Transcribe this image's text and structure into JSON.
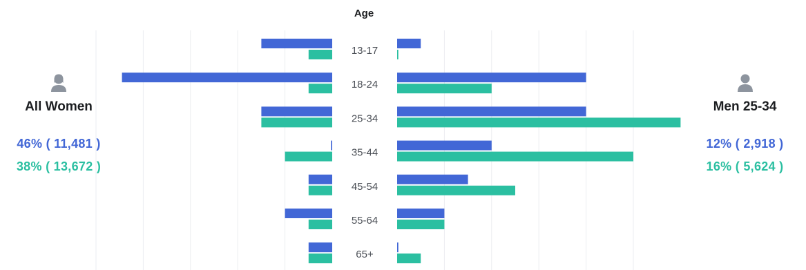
{
  "chart_data": {
    "type": "bar",
    "title": "Age",
    "categories": [
      "13-17",
      "18-24",
      "25-34",
      "35-44",
      "45-54",
      "55-64",
      "65+"
    ],
    "left_group": {
      "name": "All Women",
      "series": [
        {
          "values": [
            30,
            89,
            30,
            0.5,
            10,
            20,
            10
          ]
        },
        {
          "values": [
            10,
            10,
            30,
            20,
            10,
            10,
            10
          ]
        }
      ],
      "stats": [
        "46% ( 11,481 )",
        "38% ( 13,672 )"
      ]
    },
    "right_group": {
      "name": "Men 25-34",
      "series": [
        {
          "values": [
            10,
            80,
            80,
            40,
            30,
            20,
            0.5
          ]
        },
        {
          "values": [
            0.5,
            40,
            120,
            100,
            50,
            20,
            10
          ]
        }
      ],
      "stats": [
        "12% ( 2,918 )",
        "16% ( 5,624 )"
      ]
    },
    "xlim": [
      0,
      120
    ],
    "grid": true,
    "colors": {
      "series_1": "#4267d6",
      "series_2": "#2bbfa1",
      "grid": "#ebedf0"
    }
  },
  "icons": {
    "women": "woman-user-icon",
    "men": "man-user-icon"
  }
}
